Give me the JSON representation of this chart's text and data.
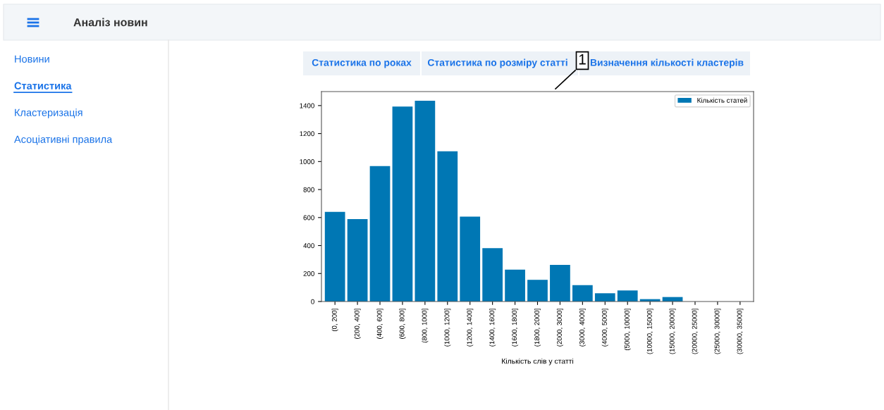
{
  "chart_data": {
    "type": "bar",
    "xlabel": "Кількість слів у статті",
    "categories": [
      "(0, 200]",
      "(200, 400]",
      "(400, 600]",
      "(600, 800]",
      "(800, 1000]",
      "(1000, 1200]",
      "(1200, 1400]",
      "(1400, 1600]",
      "(1600, 1800]",
      "(1800, 2000]",
      "(2000, 3000]",
      "(3000, 4000]",
      "(4000, 5000]",
      "(5000, 10000]",
      "(10000, 15000]",
      "(15000, 20000]",
      "(20000, 25000]",
      "(25000, 30000]",
      "(30000, 35000]"
    ],
    "series": [
      {
        "name": "Кількість статей",
        "color": "#0077b4",
        "values": [
          640,
          589,
          968,
          1393,
          1434,
          1073,
          606,
          381,
          228,
          155,
          262,
          117,
          59,
          79,
          17,
          32,
          0,
          0,
          0
        ]
      }
    ],
    "ylim": [
      0,
      1500
    ],
    "yticks": [
      0,
      200,
      400,
      600,
      800,
      1000,
      1200,
      1400
    ],
    "legend": "top right",
    "grid": false,
    "annotations": [
      "Аналіз новин",
      "Новини",
      "Статистика",
      "Кластеризація",
      "Асоціативні правила",
      "Статистика по роках",
      "Статистика по розміру статті",
      "Визначення кількості кластерів",
      "1"
    ]
  }
}
